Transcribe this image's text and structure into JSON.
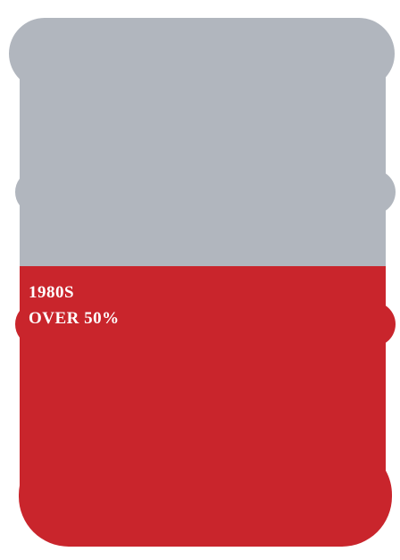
{
  "label": {
    "era": "1980S",
    "share": "OVER 50%"
  }
}
